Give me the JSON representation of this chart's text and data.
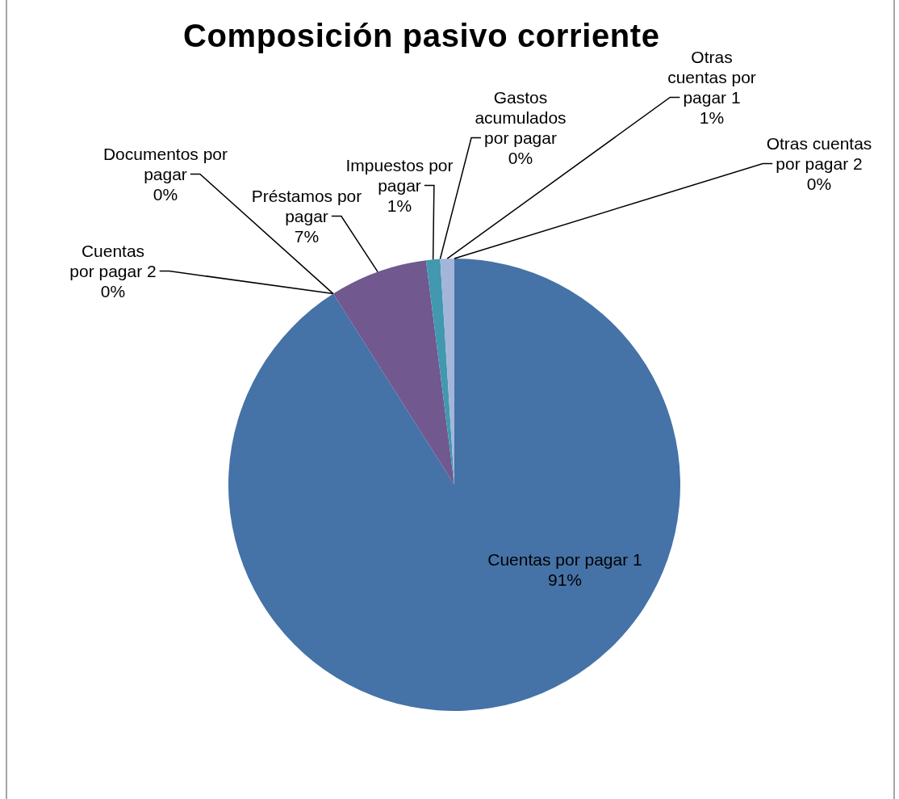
{
  "chart_data": {
    "type": "pie",
    "title": "Composición pasivo corriente",
    "categories": [
      "Cuentas por pagar 1",
      "Cuentas por pagar 2",
      "Documentos por pagar",
      "Préstamos por pagar",
      "Impuestos por pagar",
      "Gastos acumulados por pagar",
      "Otras cuentas por pagar 1",
      "Otras cuentas por pagar 2"
    ],
    "values": [
      91,
      0,
      0,
      7,
      1,
      0,
      1,
      0
    ],
    "colors": [
      "#4572a7",
      "#aa4643",
      "#89a54e",
      "#71588f",
      "#4198af",
      "#db843d",
      "#a3b6d9",
      "#93a9cf"
    ],
    "value_labels": [
      "91%",
      "0%",
      "0%",
      "7%",
      "1%",
      "0%",
      "1%",
      "0%"
    ]
  }
}
